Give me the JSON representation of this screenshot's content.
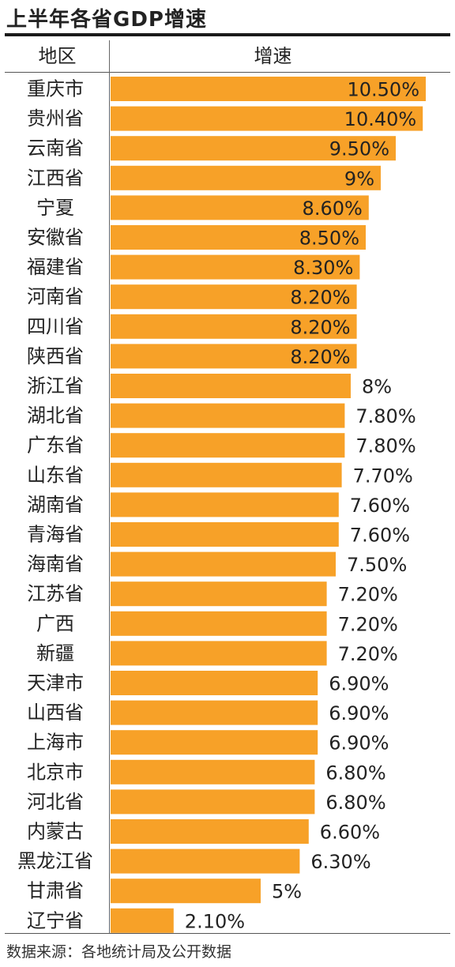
{
  "title": "上半年各省GDP增速",
  "header": {
    "region": "地区",
    "growth": "增速"
  },
  "source": "数据来源：各地统计局及公开数据",
  "chart_data": {
    "type": "bar",
    "orientation": "horizontal",
    "categories": [
      "重庆市",
      "贵州省",
      "云南省",
      "江西省",
      "宁夏",
      "安徽省",
      "福建省",
      "河南省",
      "四川省",
      "陕西省",
      "浙江省",
      "湖北省",
      "广东省",
      "山东省",
      "湖南省",
      "青海省",
      "海南省",
      "江苏省",
      "广西",
      "新疆",
      "天津市",
      "山西省",
      "上海市",
      "北京市",
      "河北省",
      "内蒙古",
      "黑龙江省",
      "甘肃省",
      "辽宁省"
    ],
    "values": [
      10.5,
      10.4,
      9.5,
      9,
      8.6,
      8.5,
      8.3,
      8.2,
      8.2,
      8.2,
      8,
      7.8,
      7.8,
      7.7,
      7.6,
      7.6,
      7.5,
      7.2,
      7.2,
      7.2,
      6.9,
      6.9,
      6.9,
      6.8,
      6.8,
      6.6,
      6.3,
      5,
      2.1
    ],
    "labels": [
      "10.50%",
      "10.40%",
      "9.50%",
      "9%",
      "8.60%",
      "8.50%",
      "8.30%",
      "8.20%",
      "8.20%",
      "8.20%",
      "8%",
      "7.80%",
      "7.80%",
      "7.70%",
      "7.60%",
      "7.60%",
      "7.50%",
      "7.20%",
      "7.20%",
      "7.20%",
      "6.90%",
      "6.90%",
      "6.90%",
      "6.80%",
      "6.80%",
      "6.60%",
      "6.30%",
      "5%",
      "2.10%"
    ],
    "bar_color": "#f7a128",
    "grid": false,
    "legend": "none"
  }
}
